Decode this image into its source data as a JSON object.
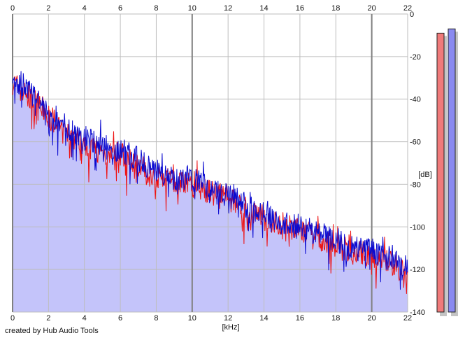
{
  "credit": "created by Hub Audio Tools",
  "colors": {
    "plot_background": "#ffffff",
    "fill": "#c4c4fa",
    "channel_left": "#ee1111",
    "channel_right": "#0b0bd0",
    "grid_minor": "#bdbdbd",
    "grid_major": "#808080",
    "meter_left": "#f07a7a",
    "meter_right": "#8a8af0",
    "meter_shadow": "#c4c4c4"
  },
  "chart_data": {
    "type": "area",
    "title": "",
    "xlabel": "[kHz]",
    "ylabel": "[dB]",
    "xlim": [
      0,
      22
    ],
    "ylim": [
      -140,
      0
    ],
    "xticks": [
      "0",
      "2",
      "4",
      "6",
      "8",
      "10",
      "12",
      "14",
      "16",
      "18",
      "20",
      "22"
    ],
    "yticks": [
      "0",
      "-20",
      "-40",
      "-60",
      "-80",
      "-100",
      "-120",
      "-140"
    ],
    "grid": true,
    "legend": "none",
    "series": [
      {
        "channel": "left",
        "color": "#ee1111",
        "x": [
          0,
          0.5,
          1,
          1.5,
          2,
          3,
          4,
          5,
          6,
          7,
          8,
          9,
          10,
          11,
          12,
          13,
          14,
          15,
          16,
          17,
          18,
          19,
          20,
          21,
          22
        ],
        "values": [
          -32,
          -36,
          -40,
          -43,
          -48,
          -56,
          -61,
          -65,
          -66,
          -71,
          -76,
          -78,
          -79,
          -84,
          -86,
          -92,
          -96,
          -100,
          -102,
          -105,
          -109,
          -112,
          -113,
          -117,
          -122
        ]
      },
      {
        "channel": "right",
        "color": "#0b0bd0",
        "x": [
          0,
          0.5,
          1,
          1.5,
          2,
          3,
          4,
          5,
          6,
          7,
          8,
          9,
          10,
          11,
          12,
          13,
          14,
          15,
          16,
          17,
          18,
          19,
          20,
          21,
          22
        ],
        "values": [
          -30,
          -33,
          -37,
          -42,
          -46,
          -53,
          -58,
          -62,
          -64,
          -68,
          -74,
          -77,
          -77,
          -83,
          -85,
          -90,
          -94,
          -98,
          -100,
          -103,
          -107,
          -110,
          -111,
          -115,
          -120
        ]
      }
    ],
    "level_meters": [
      {
        "channel": "left",
        "top_db": -9,
        "color": "#f07a7a"
      },
      {
        "channel": "right",
        "top_db": -7,
        "color": "#8a8af0"
      }
    ]
  }
}
